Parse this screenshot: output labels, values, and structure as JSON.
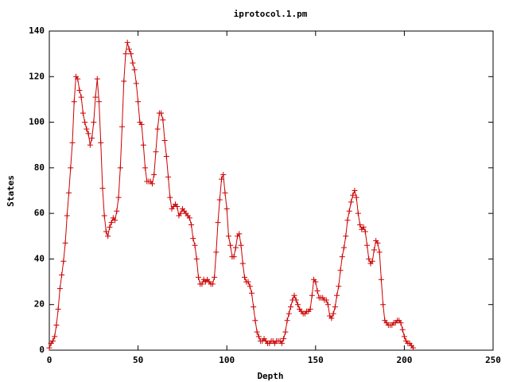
{
  "chart_data": {
    "type": "line",
    "title": "iprotocol.1.pm",
    "xlabel": "Depth",
    "ylabel": "States",
    "color": "#cc0000",
    "xlim": [
      0,
      250
    ],
    "xticks": [
      0,
      50,
      100,
      150,
      200,
      250
    ],
    "ylim": [
      0,
      140
    ],
    "yticks": [
      0,
      20,
      40,
      60,
      80,
      100,
      120,
      140
    ],
    "x": [
      0,
      1,
      2,
      3,
      4,
      5,
      6,
      7,
      8,
      9,
      10,
      11,
      12,
      13,
      14,
      15,
      16,
      17,
      18,
      19,
      20,
      21,
      22,
      23,
      24,
      25,
      26,
      27,
      28,
      29,
      30,
      31,
      32,
      33,
      34,
      35,
      36,
      37,
      38,
      39,
      40,
      41,
      42,
      43,
      44,
      45,
      46,
      47,
      48,
      49,
      50,
      51,
      52,
      53,
      54,
      55,
      56,
      57,
      58,
      59,
      60,
      61,
      62,
      63,
      64,
      65,
      66,
      67,
      68,
      69,
      70,
      71,
      72,
      73,
      74,
      75,
      76,
      77,
      78,
      79,
      80,
      81,
      82,
      83,
      84,
      85,
      86,
      87,
      88,
      89,
      90,
      91,
      92,
      93,
      94,
      95,
      96,
      97,
      98,
      99,
      100,
      101,
      102,
      103,
      104,
      105,
      106,
      107,
      108,
      109,
      110,
      111,
      112,
      113,
      114,
      115,
      116,
      117,
      118,
      119,
      120,
      121,
      122,
      123,
      124,
      125,
      126,
      127,
      128,
      129,
      130,
      131,
      132,
      133,
      134,
      135,
      136,
      137,
      138,
      139,
      140,
      141,
      142,
      143,
      144,
      145,
      146,
      147,
      148,
      149,
      150,
      151,
      152,
      153,
      154,
      155,
      156,
      157,
      158,
      159,
      160,
      161,
      162,
      163,
      164,
      165,
      166,
      167,
      168,
      169,
      170,
      171,
      172,
      173,
      174,
      175,
      176,
      177,
      178,
      179,
      180,
      181,
      182,
      183,
      184,
      185,
      186,
      187,
      188,
      189,
      190,
      191,
      192,
      193,
      194,
      195,
      196,
      197,
      198,
      199,
      200,
      201,
      202,
      203,
      204,
      205
    ],
    "values": [
      1,
      3,
      4,
      6,
      11,
      18,
      27,
      33,
      39,
      47,
      59,
      69,
      80,
      91,
      109,
      120,
      119,
      114,
      111,
      104,
      100,
      97,
      95,
      90,
      93,
      100,
      111,
      119,
      109,
      91,
      71,
      59,
      52,
      50,
      54,
      56,
      58,
      57,
      61,
      67,
      80,
      98,
      118,
      130,
      135,
      132,
      130,
      126,
      123,
      117,
      109,
      100,
      99,
      90,
      80,
      74,
      74,
      74,
      73,
      77,
      87,
      97,
      104,
      104,
      101,
      92,
      85,
      76,
      67,
      62,
      63,
      64,
      63,
      59,
      60,
      62,
      61,
      60,
      59,
      58,
      55,
      49,
      46,
      40,
      32,
      29,
      29,
      31,
      30,
      31,
      30,
      29,
      29,
      32,
      43,
      56,
      66,
      75,
      77,
      69,
      62,
      50,
      46,
      41,
      41,
      45,
      50,
      51,
      46,
      38,
      32,
      30,
      30,
      28,
      25,
      19,
      13,
      8,
      6,
      4,
      4,
      5,
      4,
      3,
      3,
      4,
      4,
      3,
      4,
      4,
      4,
      3,
      5,
      8,
      13,
      16,
      19,
      22,
      24,
      22,
      20,
      18,
      17,
      16,
      16,
      17,
      17,
      18,
      24,
      31,
      30,
      26,
      23,
      23,
      23,
      22,
      22,
      20,
      15,
      14,
      16,
      19,
      24,
      28,
      35,
      41,
      45,
      50,
      57,
      61,
      65,
      68,
      70,
      67,
      60,
      55,
      53,
      54,
      52,
      46,
      40,
      38,
      39,
      44,
      48,
      47,
      43,
      31,
      20,
      13,
      12,
      11,
      11,
      11,
      12,
      12,
      13,
      13,
      12,
      9,
      6,
      4,
      3,
      3,
      2,
      1
    ]
  }
}
